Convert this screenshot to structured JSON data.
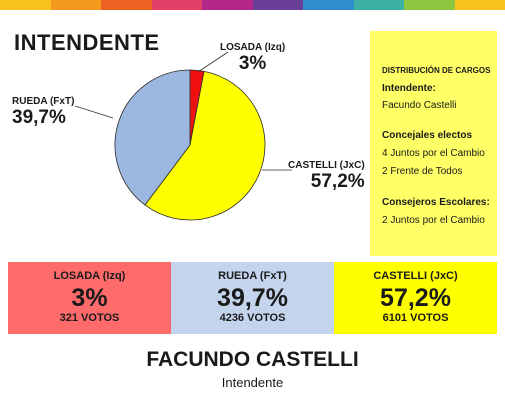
{
  "stripe_colors": [
    "#f6c21b",
    "#f39a1f",
    "#ec6223",
    "#e23f66",
    "#b4278b",
    "#6a3f98",
    "#2f8fce",
    "#3cb1a3",
    "#8ec640",
    "#f6c21b"
  ],
  "title": "INTENDENTE",
  "chart_data": {
    "type": "pie",
    "slices": [
      {
        "name": "LOSADA (Izq)",
        "label": "3%",
        "value": 3,
        "color": "#f01010"
      },
      {
        "name": "CASTELLI (JxC)",
        "label": "57,2%",
        "value": 57.2,
        "color": "#ffff00"
      },
      {
        "name": "RUEDA (FxT)",
        "label": "39,7%",
        "value": 39.7,
        "color": "#9db8e0"
      }
    ]
  },
  "panel": {
    "heading": "DISTRIBUCIÓN DE CARGOS",
    "intendente_label": "Intendente:",
    "intendente_value": "Facundo Castelli",
    "concejales_label": "Concejales electos",
    "concejales_1": "4 Juntos por el Cambio",
    "concejales_2": "2 Frente de Todos",
    "consejeros_label": "Consejeros Escolares:",
    "consejeros_1": "2 Juntos por el Cambio"
  },
  "results": [
    {
      "name": "LOSADA (Izq)",
      "percent": "3%",
      "votes": "321 VOTOS",
      "color": "#ff6b6b"
    },
    {
      "name": "RUEDA (FxT)",
      "percent": "39,7%",
      "votes": "4236 VOTOS",
      "color": "#c4d4ec"
    },
    {
      "name": "CASTELLI (JxC)",
      "percent": "57,2%",
      "votes": "6101 VOTOS",
      "color": "#ffff00"
    }
  ],
  "footer": {
    "name": "FACUNDO CASTELLI",
    "role": "Intendente"
  }
}
